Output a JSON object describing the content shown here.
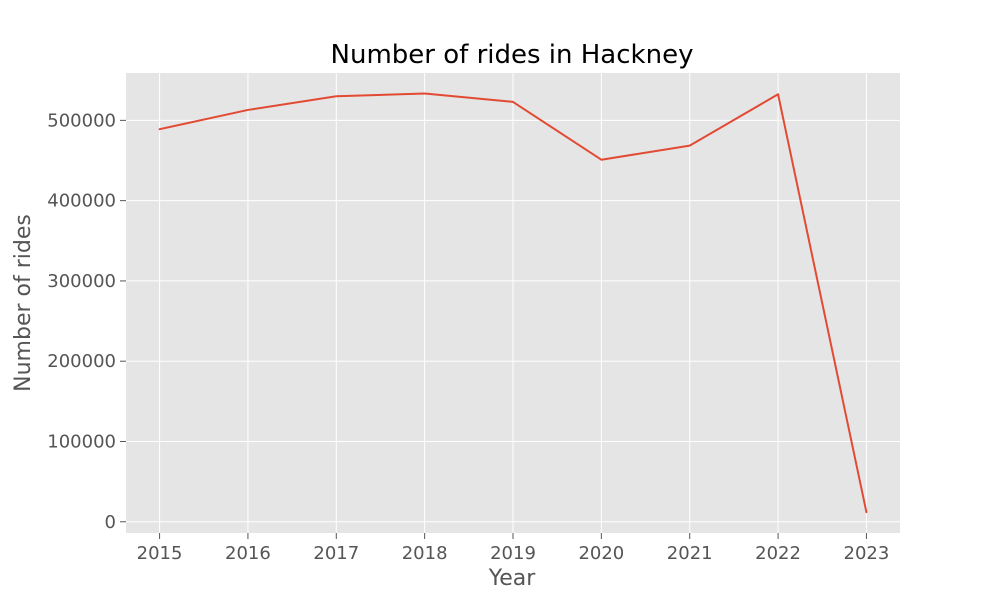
{
  "colors": {
    "background": "#ffffff",
    "plot_background": "#e5e5e5",
    "grid": "#ffffff",
    "line": "#e24a33",
    "text": "#555555",
    "title": "#000000"
  },
  "chart_data": {
    "type": "line",
    "title": "Number of rides in Hackney",
    "xlabel": "Year",
    "ylabel": "Number of rides",
    "x": [
      2015,
      2016,
      2017,
      2018,
      2019,
      2020,
      2021,
      2022,
      2023
    ],
    "series": [
      {
        "values": [
          489000,
          513000,
          530000,
          533500,
          523000,
          451000,
          468500,
          532500,
          12000
        ]
      }
    ],
    "xlim": [
      2014.62,
      2023.38
    ],
    "ylim": [
      -14000,
      559000
    ],
    "xticks": [
      2015,
      2016,
      2017,
      2018,
      2019,
      2020,
      2021,
      2022,
      2023
    ],
    "xtick_labels": [
      "2015",
      "2016",
      "2017",
      "2018",
      "2019",
      "2020",
      "2021",
      "2022",
      "2023"
    ],
    "yticks": [
      0,
      100000,
      200000,
      300000,
      400000,
      500000
    ],
    "ytick_labels": [
      "0",
      "100000",
      "200000",
      "300000",
      "400000",
      "500000"
    ],
    "grid": true,
    "legend": "none"
  }
}
